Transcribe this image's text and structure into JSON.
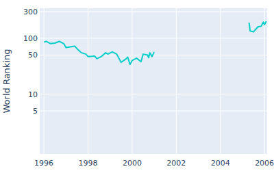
{
  "chart_data": {
    "type": "line",
    "y_label": "World Ranking",
    "x": [
      1996.0,
      1996.1,
      1996.3,
      1996.5,
      1996.7,
      1996.9,
      1997.0,
      1997.2,
      1997.4,
      1997.5,
      1997.7,
      1997.9,
      1998.0,
      1998.3,
      1998.4,
      1998.6,
      1998.8,
      1998.9,
      1999.1,
      1999.3,
      1999.5,
      1999.7,
      1999.8,
      1999.9,
      2000.0,
      2000.2,
      2000.4,
      2000.5,
      2000.7,
      2000.75,
      2000.8,
      2000.9,
      2001.0,
      2003.0,
      2005.3,
      2005.35,
      2005.5,
      2005.7,
      2005.85,
      2005.95,
      2006.0,
      2006.08
    ],
    "series": [
      {
        "name": "World Ranking",
        "color": "#00cec8",
        "values": [
          85,
          88,
          80,
          82,
          88,
          80,
          68,
          70,
          72,
          65,
          55,
          52,
          47,
          48,
          43,
          47,
          55,
          52,
          57,
          52,
          37,
          42,
          46,
          34,
          40,
          44,
          38,
          52,
          50,
          45,
          55,
          47,
          57,
          null,
          190,
          135,
          130,
          160,
          165,
          195,
          175,
          200
        ]
      }
    ],
    "xlim": [
      1995.81,
      2006.12
    ],
    "xticks": [
      1996,
      1998,
      2000,
      2002,
      2004,
      2006
    ],
    "ylim": [
      0.85,
      345
    ],
    "yticks": [
      5,
      10,
      50,
      100,
      300
    ],
    "log": "y",
    "grid": true
  }
}
